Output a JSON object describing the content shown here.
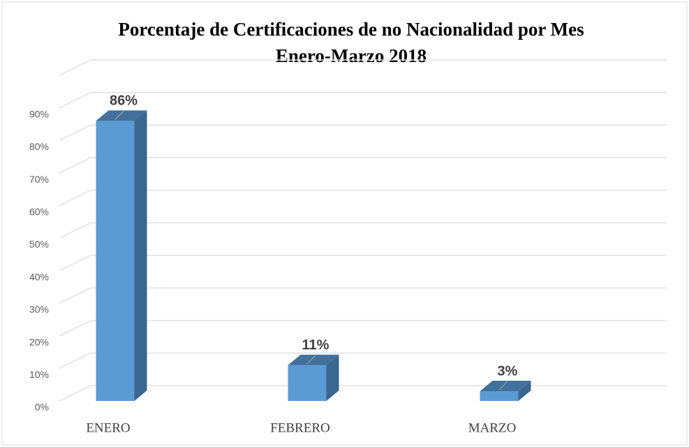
{
  "chart_data": {
    "type": "bar3d",
    "title": "Porcentaje de Certificaciones de no Nacionalidad por Mes",
    "subtitle": "Enero-Marzo 2018",
    "categories": [
      "ENERO",
      "FEBRERO",
      "MARZO"
    ],
    "values": [
      86,
      11,
      3
    ],
    "value_labels": [
      "86%",
      "11%",
      "3%"
    ],
    "color": "#5b9bd5",
    "ylim": [
      0,
      100
    ],
    "yticks": [
      {
        "value": 0,
        "label": "0%"
      },
      {
        "value": 10,
        "label": "10%"
      },
      {
        "value": 20,
        "label": "20%"
      },
      {
        "value": 30,
        "label": "30%"
      },
      {
        "value": 40,
        "label": "40%"
      },
      {
        "value": 50,
        "label": "50%"
      },
      {
        "value": 60,
        "label": "60%"
      },
      {
        "value": 70,
        "label": "70%"
      },
      {
        "value": 80,
        "label": "80%"
      },
      {
        "value": 90,
        "label": "90%"
      }
    ],
    "grid": true
  }
}
